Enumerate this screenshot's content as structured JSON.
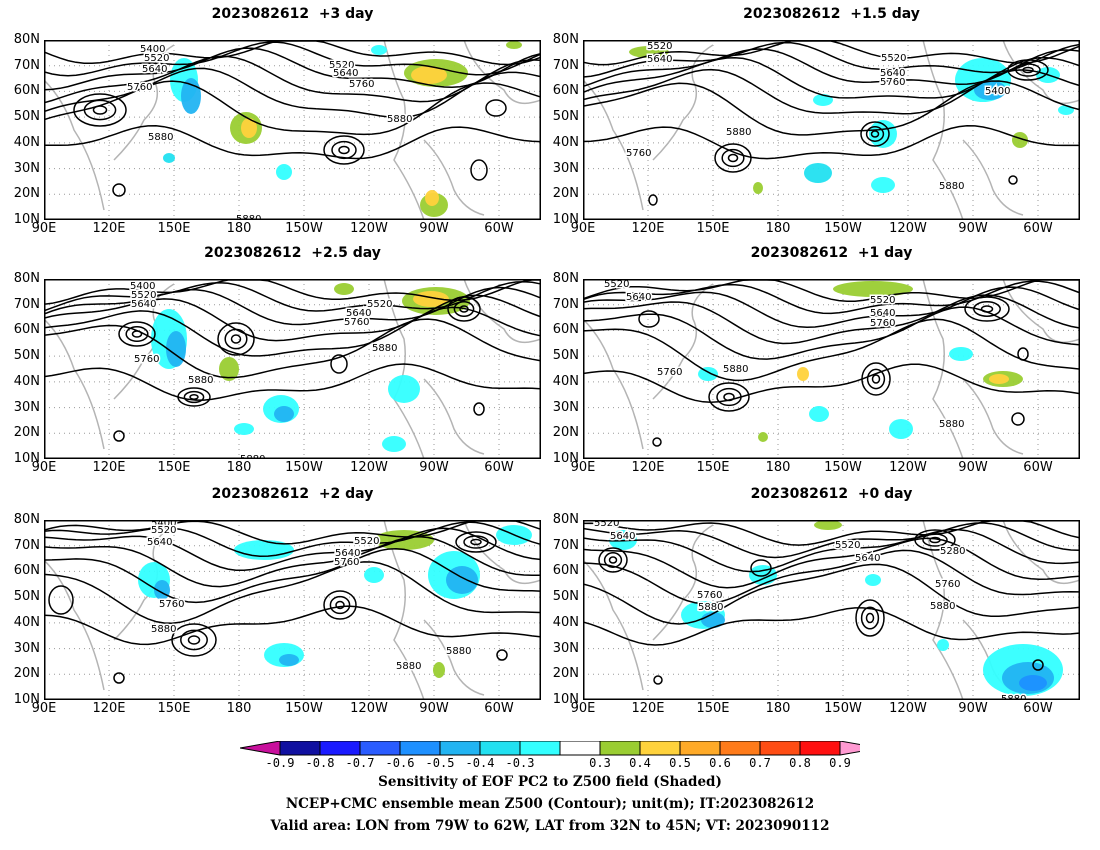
{
  "panels": [
    {
      "title": "2023082612  +3 day"
    },
    {
      "title": "2023082612  +1.5 day"
    },
    {
      "title": "2023082612  +2.5 day"
    },
    {
      "title": "2023082612  +1 day"
    },
    {
      "title": "2023082612  +2 day"
    },
    {
      "title": "2023082612  +0 day"
    }
  ],
  "lat_labels": [
    "80N",
    "70N",
    "60N",
    "50N",
    "40N",
    "30N",
    "20N",
    "10N"
  ],
  "lon_labels": [
    "90E",
    "120E",
    "150E",
    "180",
    "150W",
    "120W",
    "90W",
    "60W"
  ],
  "contour_labels": [
    "5280",
    "5400",
    "5520",
    "5640",
    "5760",
    "5880"
  ],
  "colorbar": {
    "labels": [
      "-0.9",
      "-0.8",
      "-0.7",
      "-0.6",
      "-0.5",
      "-0.4",
      "-0.3",
      "0.3",
      "0.4",
      "0.5",
      "0.6",
      "0.7",
      "0.8",
      "0.9"
    ],
    "colors": [
      "#c8109c",
      "#1010a0",
      "#1a1aff",
      "#2a5cff",
      "#1e90ff",
      "#22b4f2",
      "#22e0f0",
      "#33ffff",
      "#ffffff",
      "#9acd32",
      "#ffd23c",
      "#ffaa28",
      "#ff7b1a",
      "#ff4d14",
      "#ff1010",
      "#ff9ad2"
    ]
  },
  "footer": {
    "line1": "Sensitivity of EOF PC2 to Z500 field (Shaded)",
    "line2": "NCEP+CMC ensemble mean Z500 (Contour); unit(m); IT:2023082612",
    "line3": "Valid area: LON from 79W to 62W, LAT from 32N to 45N; VT: 2023090112"
  }
}
